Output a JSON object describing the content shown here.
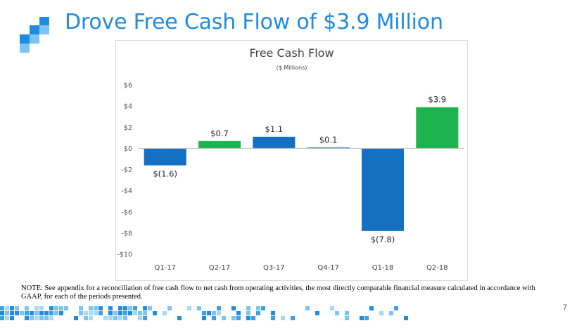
{
  "slide": {
    "title": "Drove Free Cash Flow of $3.9 Million",
    "note": "NOTE: See appendix for a reconciliation of free cash flow to net cash from operating activities, the most directly comparable financial measure calculated in accordance with GAAP, for each of the periods presented.",
    "page_number": "7"
  },
  "colors": {
    "brand_blue": "#1f8ce0",
    "negative_bar": "#156fc2",
    "positive_bar": "#1db34f"
  },
  "chart_data": {
    "type": "bar",
    "title": "Free Cash Flow",
    "subtitle": "($ Millions)",
    "categories": [
      "Q1-17",
      "Q2-17",
      "Q3-17",
      "Q4-17",
      "Q1-18",
      "Q2-18"
    ],
    "values": [
      -1.6,
      0.7,
      1.1,
      0.1,
      -7.8,
      3.9
    ],
    "data_labels": [
      "$(1.6)",
      "$0.7",
      "$1.1",
      "$0.1",
      "$(7.8)",
      "$3.9"
    ],
    "bar_colors": [
      "#156fc2",
      "#1db34f",
      "#156fc2",
      "#156fc2",
      "#156fc2",
      "#1db34f"
    ],
    "yticks": [
      6,
      4,
      2,
      0,
      -2,
      -4,
      -6,
      -8,
      -10
    ],
    "ytick_labels": [
      "$6",
      "$4",
      "$2",
      "$0",
      "-$2",
      "-$4",
      "-$6",
      "-$8",
      "-$10"
    ],
    "ylim": [
      -10,
      6
    ],
    "xlabel": "",
    "ylabel": "",
    "grid": false,
    "legend": "none"
  }
}
